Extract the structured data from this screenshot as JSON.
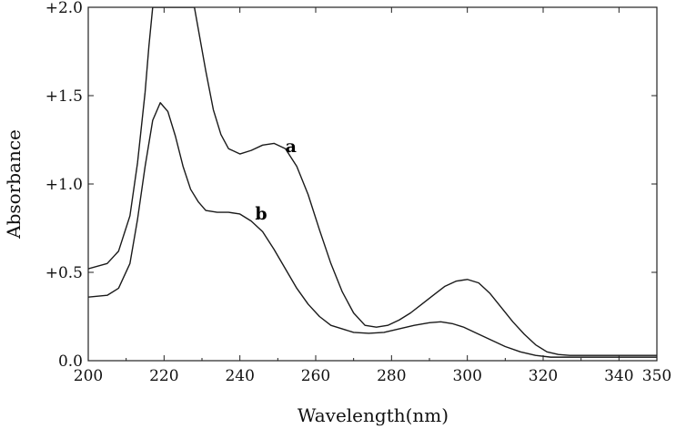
{
  "chart_data": {
    "type": "line",
    "title": "",
    "xlabel": "Wavelength(nm)",
    "ylabel": "Absorbance",
    "xlim": [
      200,
      350
    ],
    "ylim": [
      0,
      2.0
    ],
    "xticks": [
      200,
      220,
      240,
      260,
      280,
      300,
      320,
      340,
      350
    ],
    "xtick_labels": [
      "200",
      "220",
      "240",
      "260",
      "280",
      "300",
      "320",
      "340",
      "350"
    ],
    "yticks": [
      0,
      0.5,
      1.0,
      1.5,
      2.0
    ],
    "ytick_labels": [
      "0.0",
      "+0.5",
      "+1.0",
      "+1.5",
      "+2.0"
    ],
    "grid": false,
    "series": [
      {
        "name": "a",
        "color": "#1a1a1a",
        "x": [
          200,
          205,
          208,
          211,
          213,
          215,
          216,
          217,
          228,
          229,
          231,
          233,
          235,
          237,
          240,
          243,
          246,
          249,
          252,
          255,
          258,
          261,
          264,
          267,
          270,
          273,
          276,
          279,
          282,
          285,
          288,
          291,
          294,
          297,
          300,
          303,
          306,
          309,
          312,
          315,
          318,
          321,
          324,
          327,
          330,
          340,
          350
        ],
        "y": [
          0.52,
          0.55,
          0.62,
          0.82,
          1.12,
          1.52,
          1.78,
          2.0,
          2.0,
          1.88,
          1.64,
          1.42,
          1.28,
          1.2,
          1.17,
          1.19,
          1.22,
          1.23,
          1.2,
          1.1,
          0.94,
          0.74,
          0.55,
          0.39,
          0.27,
          0.2,
          0.19,
          0.2,
          0.23,
          0.27,
          0.32,
          0.37,
          0.42,
          0.45,
          0.46,
          0.44,
          0.38,
          0.3,
          0.22,
          0.15,
          0.09,
          0.05,
          0.035,
          0.03,
          0.03,
          0.03,
          0.03
        ]
      },
      {
        "name": "b",
        "color": "#1a1a1a",
        "x": [
          200,
          205,
          208,
          211,
          213,
          215,
          217,
          219,
          221,
          223,
          225,
          227,
          229,
          231,
          234,
          237,
          240,
          243,
          246,
          249,
          252,
          255,
          258,
          261,
          264,
          267,
          270,
          274,
          278,
          282,
          286,
          290,
          293,
          296,
          299,
          302,
          306,
          310,
          314,
          318,
          322,
          326,
          330,
          340,
          350
        ],
        "y": [
          0.36,
          0.37,
          0.41,
          0.55,
          0.8,
          1.1,
          1.36,
          1.46,
          1.41,
          1.27,
          1.1,
          0.97,
          0.9,
          0.85,
          0.84,
          0.84,
          0.83,
          0.79,
          0.73,
          0.63,
          0.52,
          0.41,
          0.32,
          0.25,
          0.2,
          0.18,
          0.16,
          0.155,
          0.16,
          0.18,
          0.2,
          0.215,
          0.22,
          0.21,
          0.19,
          0.16,
          0.12,
          0.08,
          0.05,
          0.03,
          0.02,
          0.02,
          0.02,
          0.02,
          0.02
        ]
      }
    ],
    "annotations": [
      {
        "text": "a",
        "x": 252,
        "y": 1.18
      },
      {
        "text": "b",
        "x": 244,
        "y": 0.8
      }
    ]
  }
}
